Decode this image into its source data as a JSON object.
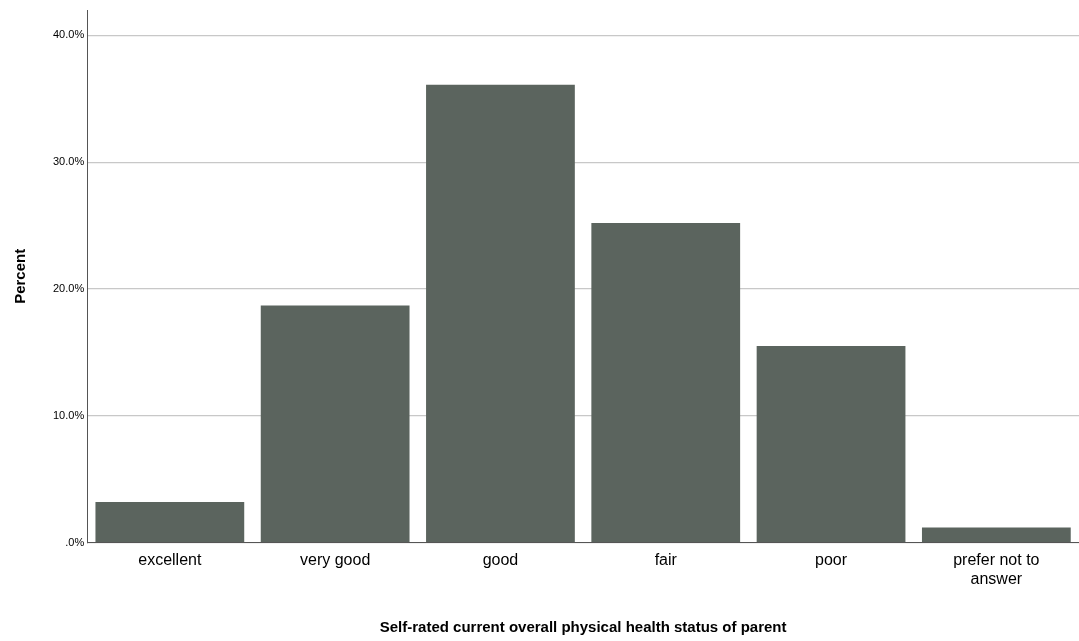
{
  "chart_data": {
    "type": "bar",
    "xlabel": "Self-rated current overall physical health status of parent",
    "ylabel": "Percent",
    "categories": [
      "excellent",
      "very good",
      "good",
      "fair",
      "poor",
      "prefer not to answer"
    ],
    "values": [
      3.2,
      18.7,
      36.1,
      25.2,
      15.5,
      1.2
    ],
    "color": "#5b645e",
    "ylim": [
      0,
      42
    ],
    "yticks": [
      {
        "value": 0,
        "label": ".0%"
      },
      {
        "value": 10,
        "label": "10.0%"
      },
      {
        "value": 20,
        "label": "20.0%"
      },
      {
        "value": 30,
        "label": "30.0%"
      },
      {
        "value": 40,
        "label": "40.0%"
      }
    ],
    "grid": "y",
    "legend": false
  }
}
